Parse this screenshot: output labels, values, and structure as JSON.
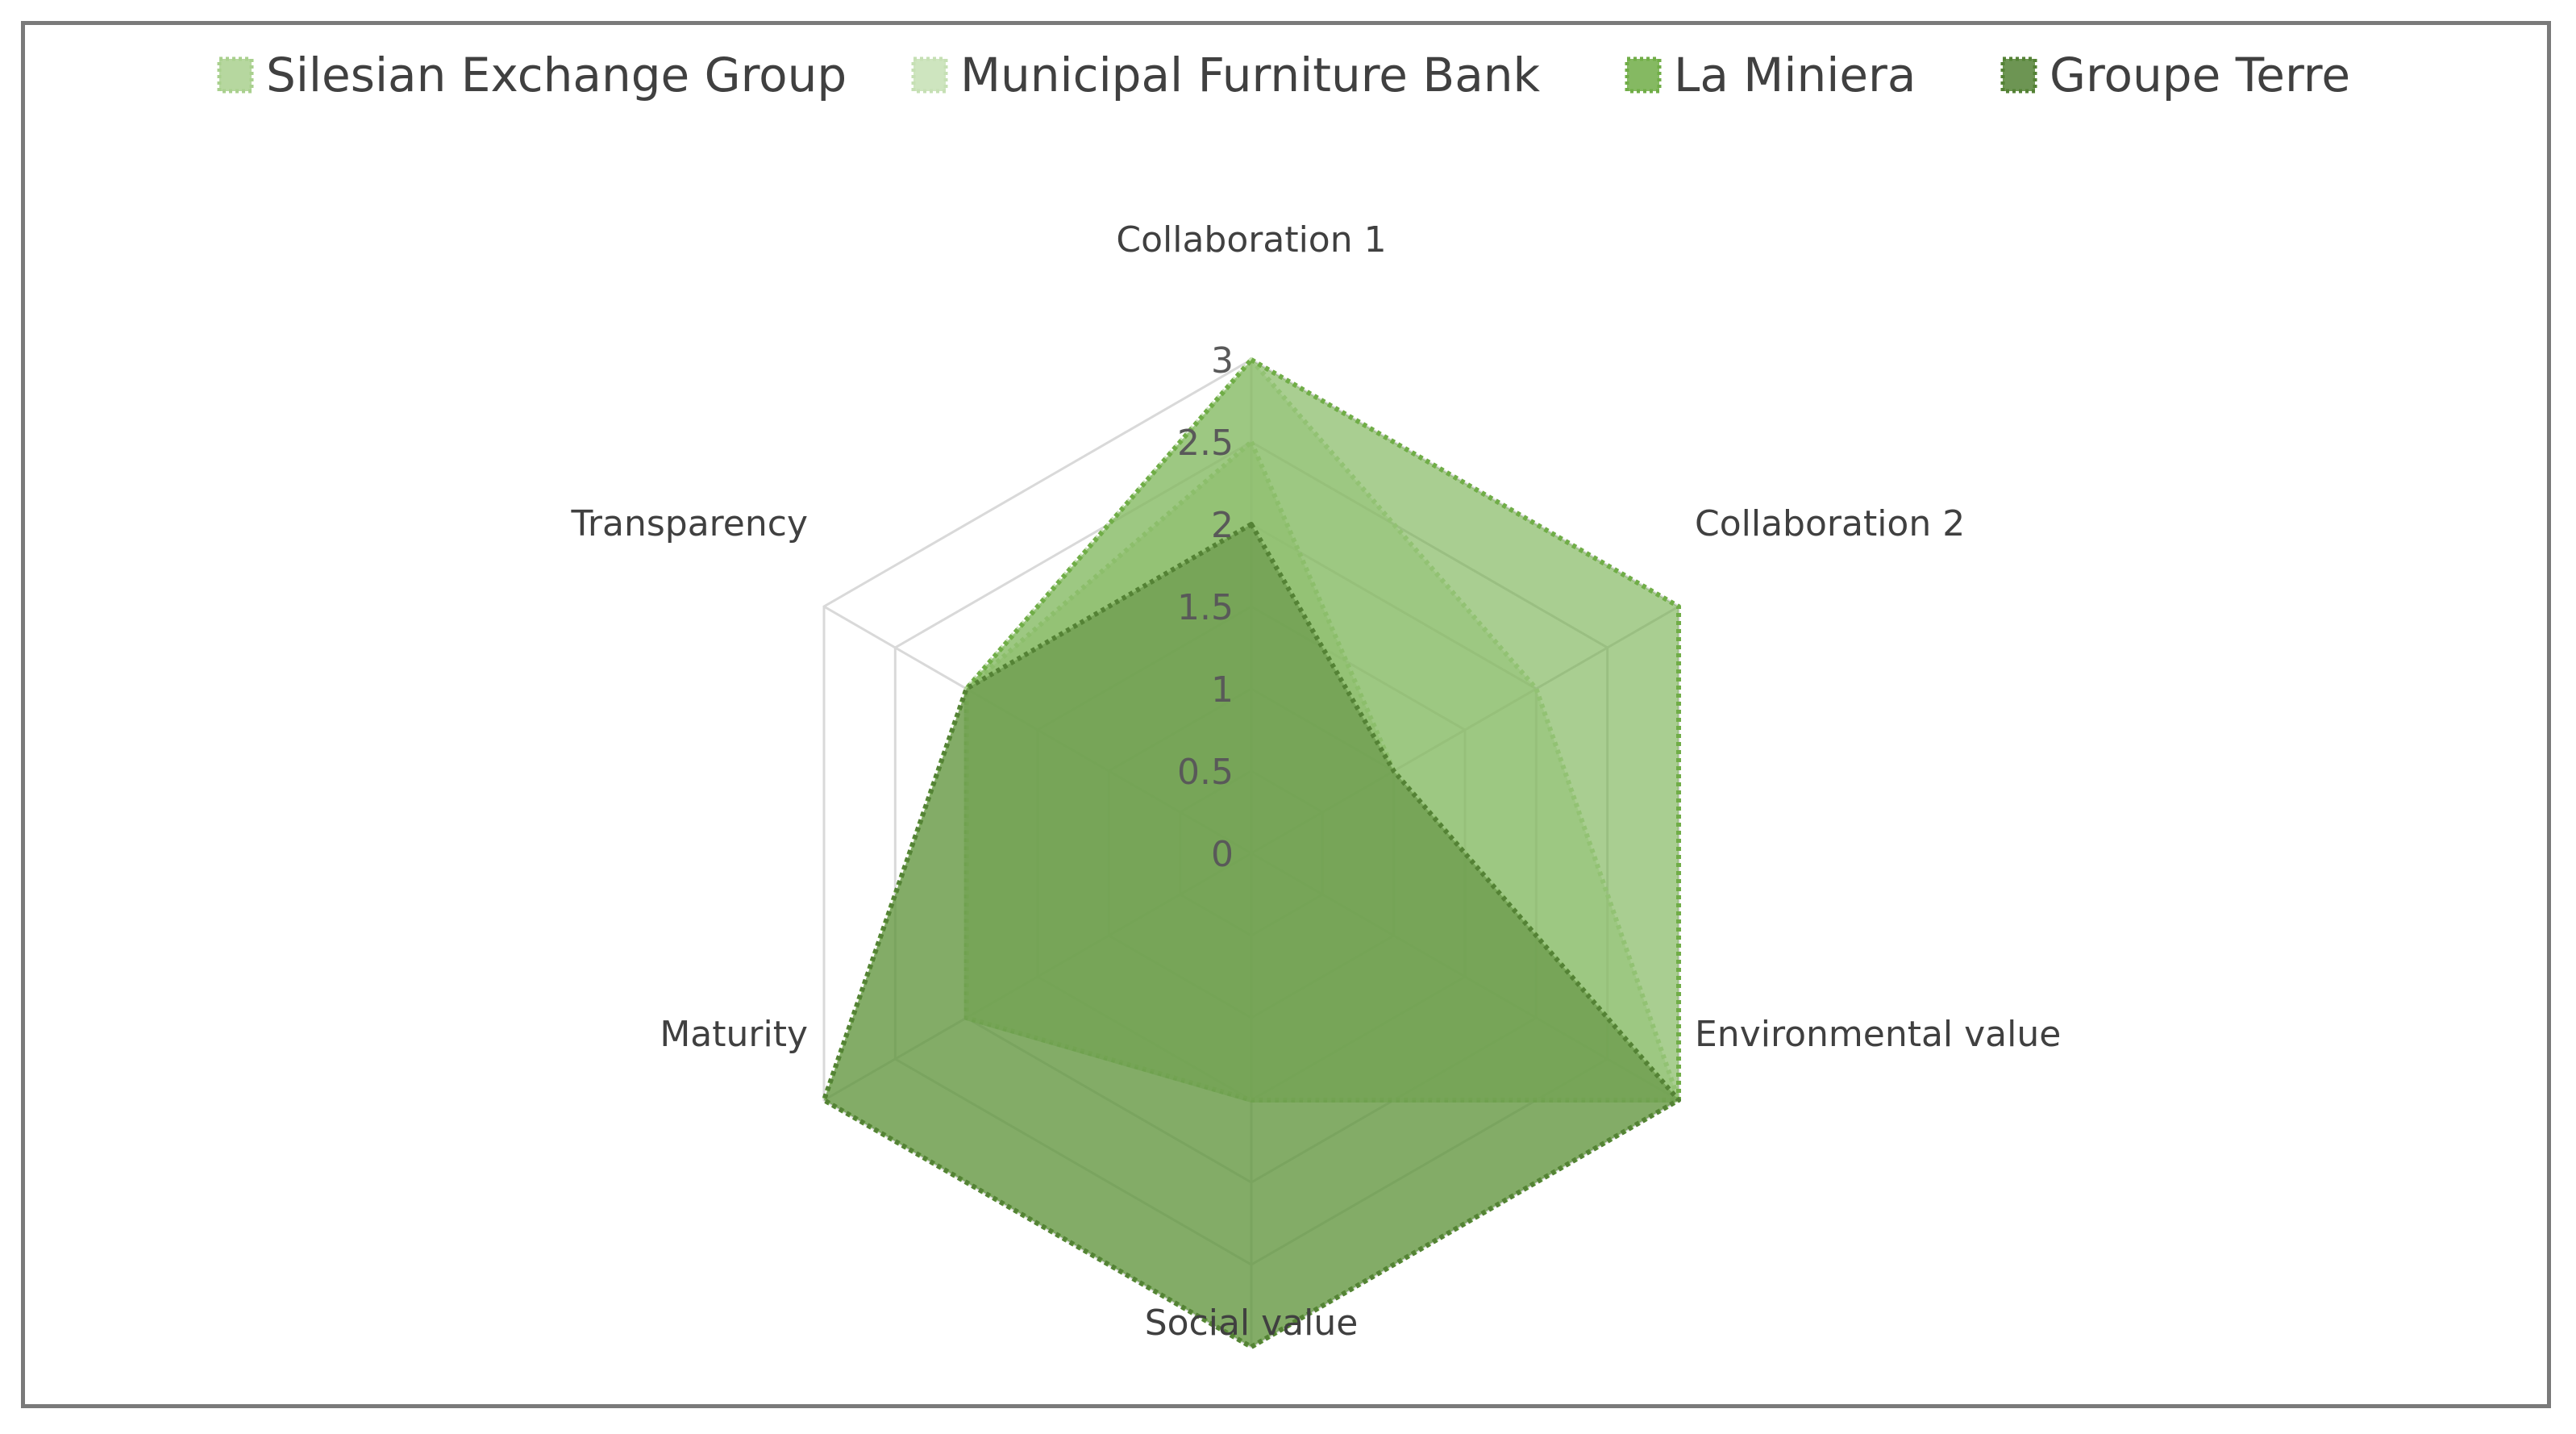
{
  "chart_data": {
    "type": "radar",
    "title": "",
    "axes": [
      "Collaboration 1",
      "Collaboration 2",
      "Environmental value",
      "Social value",
      "Maturity",
      "Transparency"
    ],
    "rlim": [
      0,
      3
    ],
    "ticks": [
      "0",
      "0.5",
      "1",
      "1.5",
      "2",
      "2.5",
      "3"
    ],
    "tick_values": [
      0,
      0.5,
      1,
      1.5,
      2,
      2.5,
      3
    ],
    "grid": true,
    "legend_position": "top",
    "series": [
      {
        "name": "Silesian Exchange Group",
        "values": [
          2.5,
          1,
          3,
          1.5,
          2,
          2
        ],
        "color": "#a9d08e"
      },
      {
        "name": "Municipal Furniture Bank",
        "values": [
          3,
          2,
          3,
          1.5,
          2,
          2
        ],
        "color": "#c6e0b4"
      },
      {
        "name": "La Miniera",
        "values": [
          3,
          3,
          3,
          3,
          3,
          2
        ],
        "color": "#70ad47"
      },
      {
        "name": "Groupe Terre",
        "values": [
          2,
          1,
          3,
          3,
          3,
          2
        ],
        "color": "#548235"
      }
    ]
  }
}
